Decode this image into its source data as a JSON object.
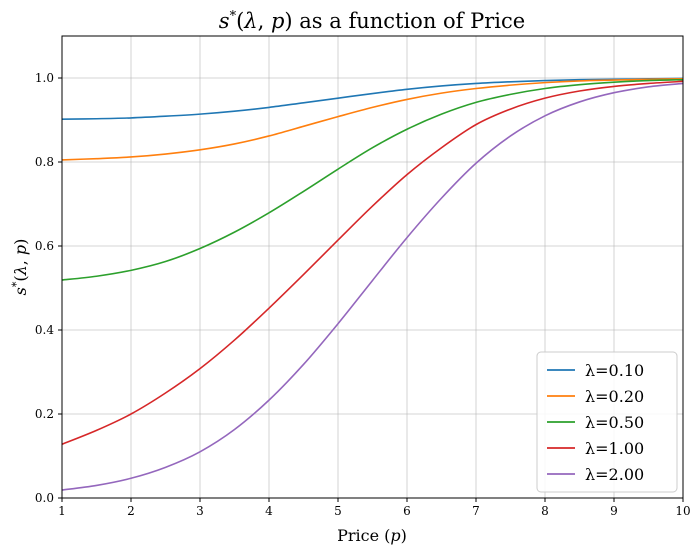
{
  "chart_data": {
    "type": "line",
    "title": "s*(λ, p) as a function of Price",
    "xlabel": "Price (p)",
    "ylabel": "s*(λ, p)",
    "xlim": [
      1,
      10
    ],
    "ylim": [
      0.0,
      1.1
    ],
    "x_ticks": [
      "1",
      "2",
      "3",
      "4",
      "5",
      "6",
      "7",
      "8",
      "9",
      "10"
    ],
    "y_ticks": [
      "0.0",
      "0.2",
      "0.4",
      "0.6",
      "0.8",
      "1.0"
    ],
    "grid": true,
    "legend_position": "bottom-right",
    "x": [
      1,
      1.5,
      2,
      2.5,
      3,
      3.5,
      4,
      4.5,
      5,
      5.5,
      6,
      6.5,
      7,
      7.5,
      8,
      8.5,
      9,
      9.5,
      10
    ],
    "series": [
      {
        "name": "λ=0.10",
        "color": "#1f77b4",
        "values": [
          0.902,
          0.903,
          0.905,
          0.909,
          0.914,
          0.921,
          0.93,
          0.941,
          0.952,
          0.963,
          0.973,
          0.981,
          0.987,
          0.991,
          0.994,
          0.996,
          0.997,
          0.998,
          0.999
        ]
      },
      {
        "name": "λ=0.20",
        "color": "#ff7f0e",
        "values": [
          0.805,
          0.808,
          0.812,
          0.819,
          0.829,
          0.843,
          0.862,
          0.885,
          0.908,
          0.93,
          0.949,
          0.964,
          0.975,
          0.983,
          0.989,
          0.993,
          0.995,
          0.997,
          0.998
        ]
      },
      {
        "name": "λ=0.50",
        "color": "#2ca02c",
        "values": [
          0.519,
          0.528,
          0.542,
          0.563,
          0.594,
          0.633,
          0.679,
          0.73,
          0.783,
          0.834,
          0.878,
          0.914,
          0.942,
          0.961,
          0.975,
          0.984,
          0.99,
          0.994,
          0.996
        ]
      },
      {
        "name": "λ=1.00",
        "color": "#d62728",
        "values": [
          0.128,
          0.161,
          0.2,
          0.25,
          0.308,
          0.376,
          0.452,
          0.532,
          0.614,
          0.695,
          0.77,
          0.834,
          0.889,
          0.926,
          0.952,
          0.969,
          0.98,
          0.987,
          0.992
        ]
      },
      {
        "name": "λ=2.00",
        "color": "#9467bd",
        "values": [
          0.019,
          0.03,
          0.047,
          0.073,
          0.11,
          0.163,
          0.233,
          0.318,
          0.415,
          0.518,
          0.62,
          0.714,
          0.797,
          0.862,
          0.91,
          0.943,
          0.965,
          0.979,
          0.987
        ]
      }
    ]
  }
}
